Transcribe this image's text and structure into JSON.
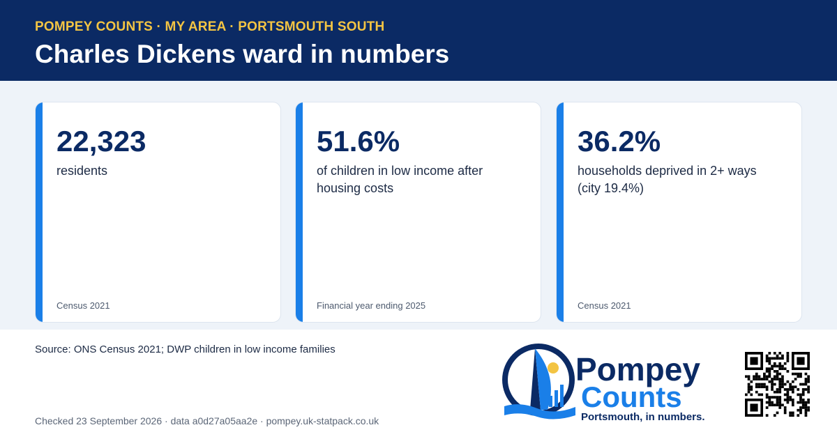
{
  "header": {
    "kicker": "POMPEY COUNTS · MY AREA · PORTSMOUTH SOUTH",
    "title": "Charles Dickens ward in numbers"
  },
  "cards": [
    {
      "value": "22,323",
      "label": "residents",
      "source": "Census 2021"
    },
    {
      "value": "51.6%",
      "label": "of children in low income after housing costs",
      "source": "Financial year ending 2025"
    },
    {
      "value": "36.2%",
      "label": "households deprived in 2+ ways (city 19.4%)",
      "source": "Census 2021"
    }
  ],
  "footer": {
    "source": "Source: ONS Census 2021; DWP children in low income families",
    "checked": "Checked 23 September 2026 · data a0d27a05aa2e · pompey.uk-statpack.co.uk"
  },
  "logo": {
    "line1": "Pompey",
    "line2": "Counts",
    "tagline": "Portsmouth, in numbers."
  }
}
